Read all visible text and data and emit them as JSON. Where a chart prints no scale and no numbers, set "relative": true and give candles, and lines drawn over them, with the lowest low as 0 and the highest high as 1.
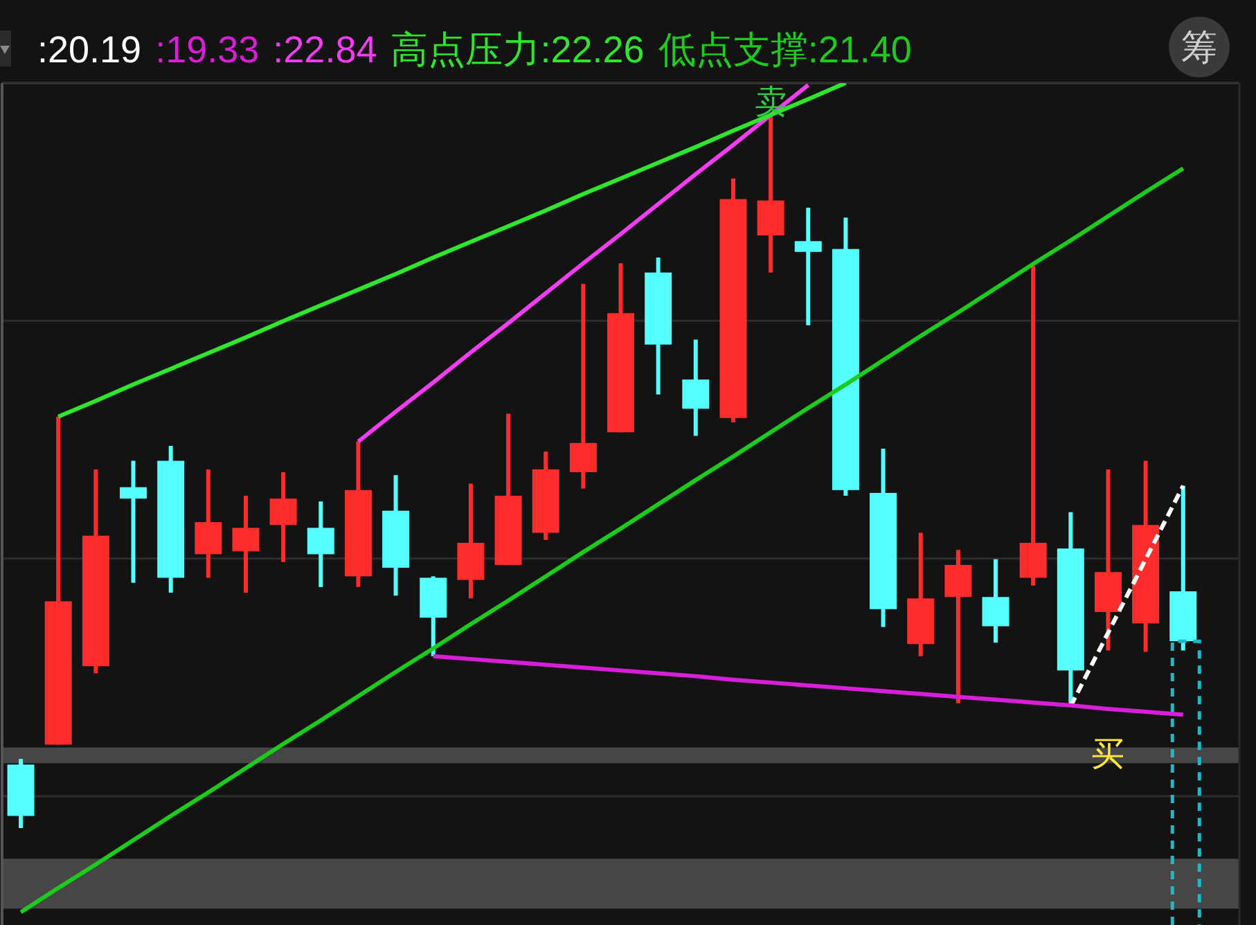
{
  "chart_data": {
    "type": "candlestick",
    "relative": true,
    "legend": "top left",
    "grid": "y",
    "categories": [
      null,
      null,
      null,
      null,
      null,
      null,
      null,
      null,
      null,
      null,
      null,
      null,
      null,
      null,
      null,
      null,
      null,
      null,
      null,
      null,
      null,
      null,
      null,
      null,
      null,
      null,
      null,
      null,
      null,
      null,
      null,
      null
    ],
    "ohlc": [
      [
        0.089,
        0.097,
        0,
        0.017
      ],
      [
        0.117,
        0.577,
        0.117,
        0.318
      ],
      [
        0.227,
        0.503,
        0.217,
        0.41
      ],
      [
        0.478,
        0.515,
        0.344,
        0.462
      ],
      [
        0.515,
        0.536,
        0.33,
        0.351
      ],
      [
        0.384,
        0.503,
        0.351,
        0.429
      ],
      [
        0.388,
        0.466,
        0.33,
        0.421
      ],
      [
        0.425,
        0.499,
        0.373,
        0.462
      ],
      [
        0.421,
        0.458,
        0.338,
        0.384
      ],
      [
        0.353,
        0.542,
        0.338,
        0.474
      ],
      [
        0.445,
        0.495,
        0.326,
        0.365
      ],
      [
        0.351,
        0.353,
        0.241,
        0.295
      ],
      [
        0.348,
        0.483,
        0.322,
        0.4
      ],
      [
        0.369,
        0.581,
        0.369,
        0.466
      ],
      [
        0.414,
        0.528,
        0.404,
        0.503
      ],
      [
        0.499,
        0.763,
        0.476,
        0.54
      ],
      [
        0.555,
        0.792,
        0.555,
        0.722
      ],
      [
        0.779,
        0.8,
        0.608,
        0.678
      ],
      [
        0.629,
        0.685,
        0.55,
        0.588
      ],
      [
        0.575,
        0.911,
        0.569,
        0.882
      ],
      [
        0.831,
        1.0,
        0.779,
        0.88
      ],
      [
        0.823,
        0.87,
        0.705,
        0.808
      ],
      [
        0.812,
        0.856,
        0.466,
        0.474
      ],
      [
        0.47,
        0.532,
        0.282,
        0.307
      ],
      [
        0.258,
        0.414,
        0.241,
        0.322
      ],
      [
        0.324,
        0.39,
        0.175,
        0.369
      ],
      [
        0.324,
        0.377,
        0.26,
        0.283
      ],
      [
        0.351,
        0.788,
        0.34,
        0.4
      ],
      [
        0.392,
        0.443,
        0.171,
        0.221
      ],
      [
        0.303,
        0.503,
        0.249,
        0.359
      ],
      [
        0.287,
        0.515,
        0.247,
        0.425
      ],
      [
        0.332,
        0.48,
        0.249,
        0.262
      ]
    ],
    "colors": [
      "#55ffff",
      "#ff2c2c",
      "#ff2c2c",
      "#55ffff",
      "#55ffff",
      "#ff2c2c",
      "#ff2c2c",
      "#ff2c2c",
      "#55ffff",
      "#ff2c2c",
      "#55ffff",
      "#55ffff",
      "#ff2c2c",
      "#ff2c2c",
      "#ff2c2c",
      "#ff2c2c",
      "#ff2c2c",
      "#55ffff",
      "#55ffff",
      "#ff2c2c",
      "#ff2c2c",
      "#55ffff",
      "#55ffff",
      "#55ffff",
      "#ff2c2c",
      "#ff2c2c",
      "#55ffff",
      "#ff2c2c",
      "#55ffff",
      "#ff2c2c",
      "#ff2c2c",
      "#55ffff"
    ],
    "series": [
      {
        "type": "line",
        "name": ":20.19",
        "color": "#ffffff",
        "line_style": "dashed",
        "values": [
          null,
          null,
          null,
          null,
          null,
          null,
          null,
          null,
          null,
          null,
          null,
          null,
          null,
          null,
          null,
          null,
          null,
          null,
          null,
          null,
          null,
          null,
          null,
          null,
          null,
          null,
          null,
          null,
          0.171,
          0.274,
          0.377,
          0.48
        ]
      },
      {
        "type": "line",
        "name": ":19.33",
        "color": "#d91ed9",
        "values": [
          null,
          null,
          null,
          null,
          null,
          null,
          null,
          null,
          null,
          null,
          null,
          0.241,
          0.237,
          0.233,
          0.229,
          0.225,
          0.221,
          0.217,
          0.213,
          0.208,
          0.204,
          0.2,
          0.196,
          0.192,
          0.188,
          0.184,
          0.18,
          0.176,
          0.172,
          0.167,
          0.163,
          0.159
        ]
      },
      {
        "type": "line",
        "name": ":22.84",
        "color": "#f53cf5",
        "values": [
          null,
          null,
          null,
          null,
          null,
          null,
          null,
          null,
          null,
          0.542,
          0.584,
          0.625,
          0.667,
          0.708,
          0.75,
          0.792,
          0.833,
          0.875,
          0.917,
          0.958,
          1.0,
          1.042,
          null,
          null,
          null,
          null,
          null,
          null,
          null,
          null,
          null,
          null
        ]
      },
      {
        "type": "line",
        "name": "高点压力:22.26",
        "color": "#2ee62e",
        "values": [
          null,
          0.577,
          0.599,
          0.622,
          0.644,
          0.666,
          0.688,
          0.711,
          0.733,
          0.755,
          0.777,
          0.8,
          0.822,
          0.844,
          0.866,
          0.889,
          0.911,
          0.933,
          0.955,
          0.978,
          1.0,
          1.022,
          1.045,
          null,
          null,
          null,
          null,
          null,
          null,
          null,
          null,
          null
        ]
      },
      {
        "type": "line",
        "name": "低点支撑:21.40",
        "color": "#1ccc1c",
        "values": [
          -0.118,
          -0.084,
          -0.051,
          -0.017,
          0.017,
          0.05,
          0.084,
          0.118,
          0.151,
          0.185,
          0.219,
          0.252,
          0.286,
          0.319,
          0.353,
          0.387,
          0.42,
          0.454,
          0.488,
          0.521,
          0.555,
          0.589,
          0.622,
          0.656,
          0.69,
          0.723,
          0.757,
          0.791,
          0.824,
          0.858,
          0.892,
          0.925
        ]
      }
    ],
    "bands": [
      {
        "axis": "y",
        "from": 0.091,
        "to": 0.113,
        "color": "#464646"
      },
      {
        "axis": "y",
        "from": -0.113,
        "to": -0.043,
        "color": "#464646"
      }
    ],
    "annotations": [
      "筹",
      "卖",
      "买"
    ]
  }
}
